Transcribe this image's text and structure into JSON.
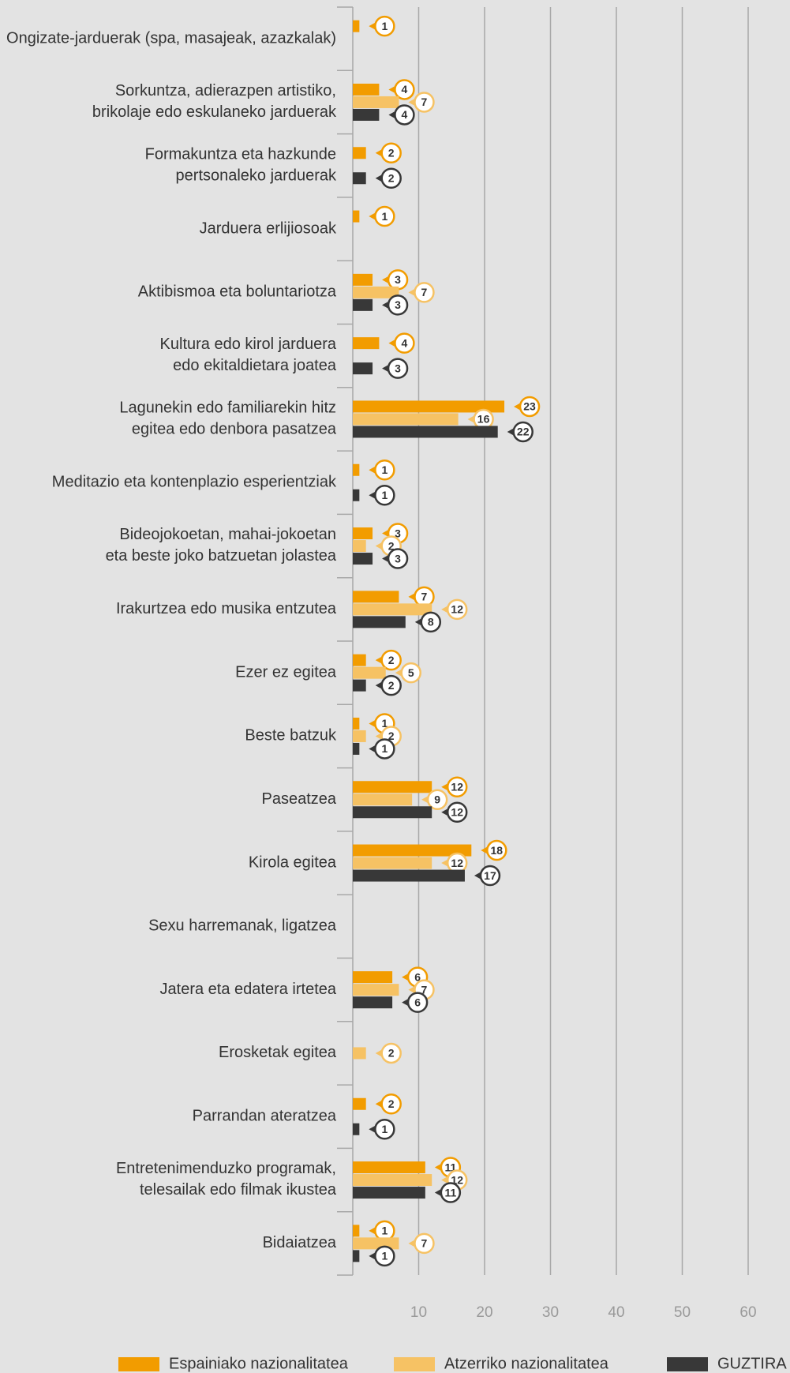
{
  "chart_data": {
    "type": "hbar",
    "categories": [
      "Ongizate-jarduerak (spa, masajeak, azazkalak)",
      "Sorkuntza, adierazpen artistiko,\nbrikolaje edo eskulaneko jarduerak",
      "Formakuntza eta hazkunde\npertsonaleko jarduerak",
      "Jarduera erlijiosoak",
      "Aktibismoa eta boluntariotza",
      "Kultura edo kirol jarduera\nedo ekitaldietara joatea",
      "Lagunekin edo familiarekin hitz\negitea edo denbora pasatzea",
      "Meditazio eta kontenplazio esperientziak",
      "Bideojokoetan, mahai-jokoetan\neta beste joko batzuetan jolastea",
      "Irakurtzea edo musika entzutea",
      "Ezer ez egitea",
      "Beste batzuk",
      "Paseatzea",
      "Kirola egitea",
      "Sexu harremanak, ligatzea",
      "Jatera eta edatera irtetea",
      "Erosketak egitea",
      "Parrandan ateratzea",
      "Entretenimenduzko programak,\ntelesailak edo filmak ikustea",
      "Bidaiatzea"
    ],
    "series": [
      {
        "name": "Espainiako nazionalitatea",
        "color": "#f29c00",
        "values": [
          1,
          4,
          2,
          1,
          3,
          4,
          23,
          1,
          3,
          7,
          2,
          1,
          12,
          18,
          null,
          6,
          null,
          2,
          11,
          1
        ]
      },
      {
        "name": "Atzerriko nazionalitatea",
        "color": "#f6c264",
        "values": [
          null,
          7,
          null,
          null,
          7,
          null,
          16,
          null,
          2,
          12,
          5,
          2,
          9,
          12,
          null,
          7,
          2,
          null,
          12,
          7
        ]
      },
      {
        "name": "GUZTIRA",
        "color": "#383838",
        "values": [
          null,
          4,
          2,
          null,
          3,
          3,
          22,
          1,
          3,
          8,
          2,
          1,
          12,
          17,
          null,
          6,
          null,
          1,
          11,
          1
        ]
      }
    ],
    "xlim": [
      0,
      60
    ],
    "xticks": [
      10,
      20,
      30,
      40,
      50,
      60
    ],
    "grid": true
  }
}
